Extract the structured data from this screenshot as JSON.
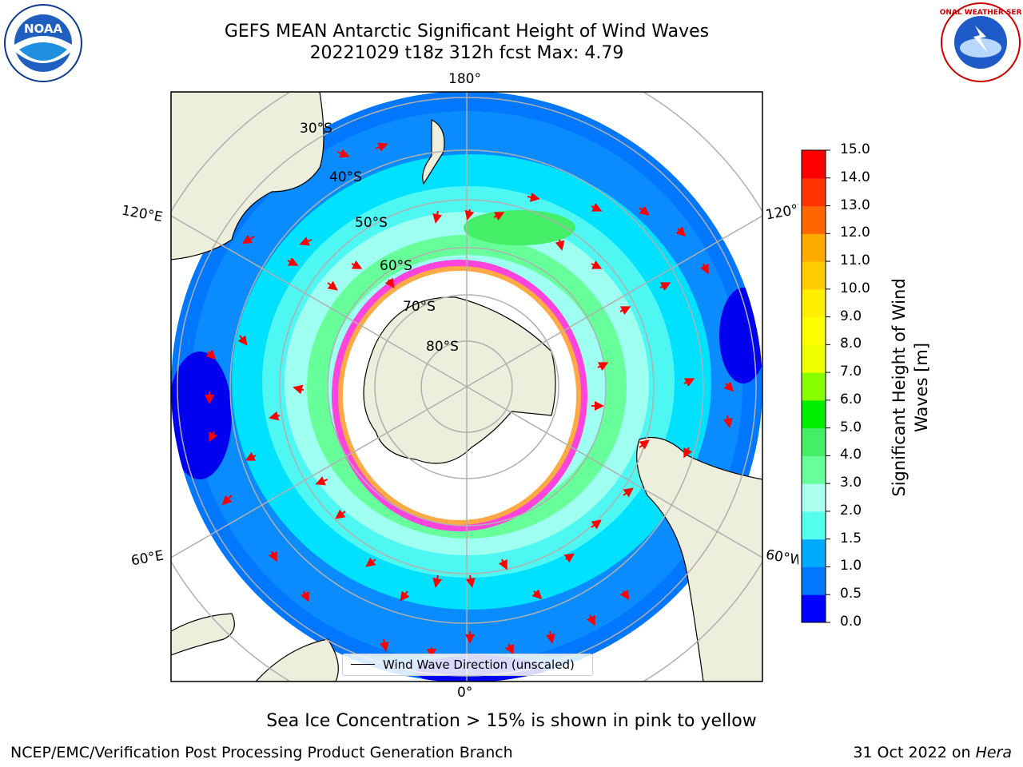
{
  "titles": {
    "line1": "GEFS MEAN Antarctic Significant Height of Wind Waves",
    "line2": "20221029 t18z 312h fcst   Max: 4.79"
  },
  "longitude_labels": {
    "top": "180°",
    "bottom": "0°",
    "upper_left": "120°E",
    "lower_left": "60°E",
    "upper_right": "120°W",
    "lower_right": "60°W"
  },
  "latitude_labels": [
    "30°S",
    "40°S",
    "50°S",
    "60°S",
    "70°S",
    "80°S"
  ],
  "legend": {
    "label": "Wind Wave Direction (unscaled)"
  },
  "colorbar": {
    "label_line1": "Significant Height of Wind",
    "label_line2": "Waves [m]",
    "ticks": [
      "15.0",
      "14.0",
      "13.0",
      "12.0",
      "11.0",
      "10.0",
      "9.0",
      "8.0",
      "7.0",
      "6.0",
      "5.0",
      "4.0",
      "3.0",
      "2.0",
      "1.5",
      "1.0",
      "0.5",
      "0.0"
    ],
    "colors": [
      "#ff0000",
      "#ff3300",
      "#ff6600",
      "#ff8800",
      "#ffaa00",
      "#ffcc00",
      "#ffee00",
      "#ffff00",
      "#eeff00",
      "#ccff00",
      "#88ff00",
      "#00ee00",
      "#44ee66",
      "#66ff99",
      "#aaffee",
      "#55ffee",
      "#00ffff",
      "#00aaff",
      "#0077ff",
      "#0000ff"
    ]
  },
  "caption": "Sea Ice Concentration > 15% is shown in pink to yellow",
  "footer": {
    "left": "NCEP/EMC/Verification Post Processing Product Generation Branch",
    "right_date": "31 Oct 2022 on ",
    "right_system": "Hera"
  },
  "logos": {
    "left_text": "NOAA",
    "right_text": "NATIONAL WEATHER SERVICE"
  }
}
